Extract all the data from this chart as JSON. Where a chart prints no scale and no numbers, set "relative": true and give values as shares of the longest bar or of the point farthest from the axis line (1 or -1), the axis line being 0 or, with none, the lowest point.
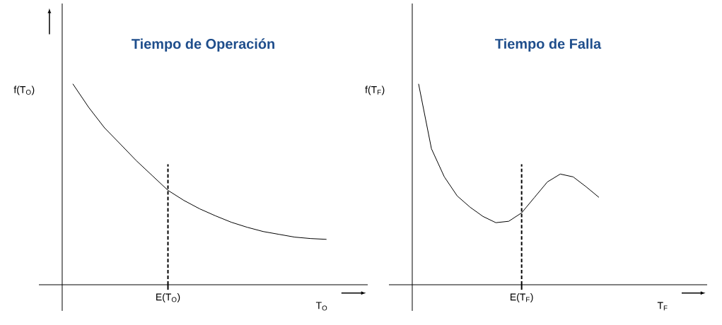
{
  "chart_data": [
    {
      "type": "line",
      "relative": true,
      "title": "Tiempo de Operación",
      "xlabel": "T$_{O}$",
      "ylabel": "f(T$_{O}$)",
      "color": "#000000",
      "categories": [
        null,
        null,
        null,
        null,
        null,
        null,
        null,
        null,
        null,
        null,
        null,
        null,
        null,
        null,
        null,
        null,
        null
      ],
      "values": [
        1,
        0.883,
        0.781,
        0.7,
        0.618,
        0.544,
        0.47,
        0.42,
        0.378,
        0.343,
        0.311,
        0.286,
        0.265,
        0.251,
        0.237,
        0.23,
        0.226
      ],
      "annotations": [
        "E(T$_{O}$)"
      ]
    },
    {
      "type": "line",
      "relative": true,
      "title": "Tiempo de Falla",
      "xlabel": "T$_{F}$",
      "ylabel": "f(T$_{F}$)",
      "color": "#000000",
      "categories": [
        null,
        null,
        null,
        null,
        null,
        null,
        null,
        null,
        null,
        null,
        null,
        null,
        null,
        null,
        null
      ],
      "values": [
        1,
        0.677,
        0.537,
        0.442,
        0.386,
        0.34,
        0.309,
        0.316,
        0.358,
        0.435,
        0.512,
        0.551,
        0.537,
        0.488,
        0.435
      ],
      "annotations": [
        "E(T$_{F}$)"
      ]
    }
  ]
}
